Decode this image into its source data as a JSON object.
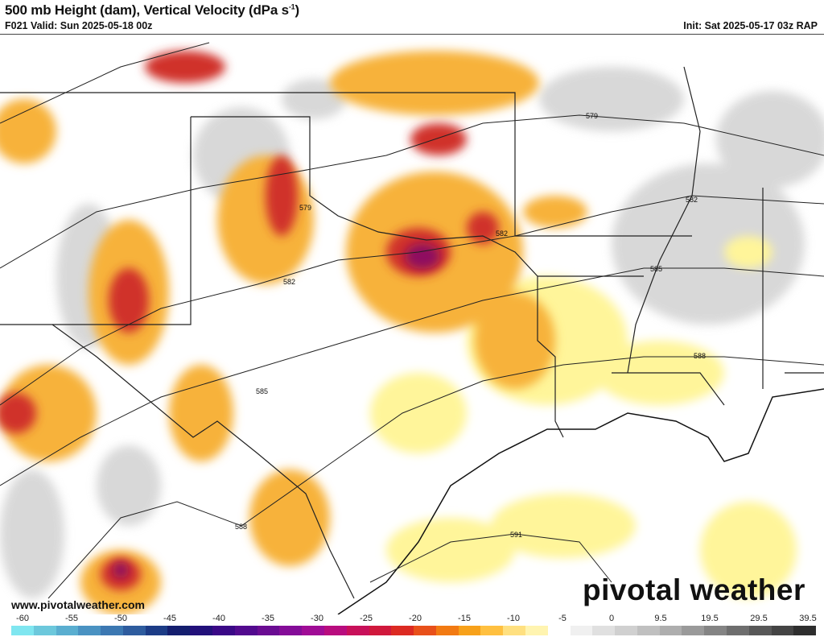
{
  "header": {
    "title": "500 mb Height (dam), Vertical Velocity (dPa s",
    "title_sup": "-1",
    "title_end": ")",
    "valid": "F021 Valid: Sun 2025-05-18 00z",
    "init": "Init: Sat 2025-05-17 03z RAP"
  },
  "map": {
    "contour_labels": [
      "579",
      "579",
      "582",
      "582",
      "582",
      "585",
      "585",
      "588",
      "588",
      "591"
    ],
    "colors": {
      "light_yellow": "#fff59a",
      "yellow": "#ffd866",
      "orange": "#f7a11a",
      "dark_orange": "#e8701a",
      "red": "#c8102e",
      "magenta": "#8e0b5e",
      "gray_light": "#e0e0e0",
      "gray": "#b4b4b4"
    }
  },
  "footer": {
    "url": "www.pivotalweather.com",
    "logo": "pivotal weather"
  },
  "colorbar": {
    "labels": [
      "-60",
      "-55",
      "-50",
      "-45",
      "-40",
      "-35",
      "-30",
      "-25",
      "-20",
      "-15",
      "-10",
      "-5",
      "0",
      "9.5",
      "19.5",
      "29.5",
      "39.5"
    ],
    "colors": [
      "#7fe6f0",
      "#6cc8dc",
      "#5aaed0",
      "#4a92c2",
      "#3c78b2",
      "#2e5c9e",
      "#1c3c86",
      "#141e6e",
      "#22107a",
      "#3a0886",
      "#520a8e",
      "#6a0c92",
      "#840c98",
      "#a00c96",
      "#b80c7e",
      "#c8105a",
      "#d0183c",
      "#dc2a22",
      "#e8501a",
      "#f27a12",
      "#f7a11a",
      "#ffc040",
      "#ffe080",
      "#fff4b0",
      "#ffffff",
      "#f0f0f0",
      "#e0e0e0",
      "#d0d0d0",
      "#c0c0c0",
      "#aeaeae",
      "#9a9a9a",
      "#848484",
      "#6e6e6e",
      "#585858",
      "#444444",
      "#2e2e2e"
    ]
  }
}
